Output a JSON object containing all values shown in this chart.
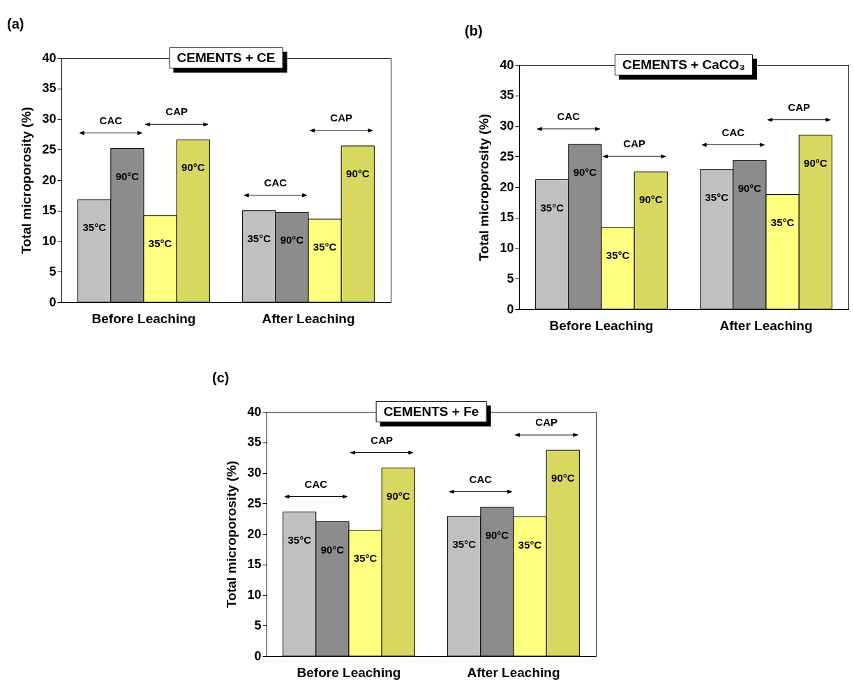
{
  "chart_data": [
    {
      "type": "bar",
      "title": "CEMENTS + CE",
      "ylabel": "Total microporosity (%)",
      "categories": [
        "Before Leaching",
        "After Leaching"
      ],
      "series": [
        {
          "name": "35°C",
          "color": "#c0c0c0",
          "values": [
            16.8,
            15.0
          ]
        },
        {
          "name": "90°C",
          "color": "#8c8c8c",
          "values": [
            25.2,
            14.7
          ]
        },
        {
          "name": "35°C",
          "color": "#ffff80",
          "values": [
            14.2,
            13.6
          ]
        },
        {
          "name": "90°C",
          "color": "#d8d860",
          "values": [
            26.6,
            25.6
          ]
        }
      ],
      "ylim": [
        0,
        40
      ],
      "yticks": [
        0,
        5,
        10,
        15,
        20,
        25,
        30,
        35,
        40
      ],
      "annotations": [
        "(a)",
        "CAC",
        "CAP",
        "CAC",
        "CAP"
      ]
    },
    {
      "type": "bar",
      "title": "CEMENTS + CaCO₃",
      "ylabel": "Total microporosity (%)",
      "categories": [
        "Before Leaching",
        "After Leaching"
      ],
      "series": [
        {
          "name": "35°C",
          "color": "#c0c0c0",
          "values": [
            21.2,
            22.9
          ]
        },
        {
          "name": "90°C",
          "color": "#8c8c8c",
          "values": [
            27.0,
            24.4
          ]
        },
        {
          "name": "35°C",
          "color": "#ffff80",
          "values": [
            13.4,
            18.8
          ]
        },
        {
          "name": "90°C",
          "color": "#d8d860",
          "values": [
            22.5,
            28.5
          ]
        }
      ],
      "ylim": [
        0,
        40
      ],
      "yticks": [
        0,
        5,
        10,
        15,
        20,
        25,
        30,
        35,
        40
      ],
      "annotations": [
        "(b)",
        "CAC",
        "CAP",
        "CAC",
        "CAP"
      ]
    },
    {
      "type": "bar",
      "title": "CEMENTS + Fe",
      "ylabel": "Total microporosity (%)",
      "categories": [
        "Before Leaching",
        "After Leaching"
      ],
      "series": [
        {
          "name": "35°C",
          "color": "#c0c0c0",
          "values": [
            23.6,
            22.9
          ]
        },
        {
          "name": "90°C",
          "color": "#8c8c8c",
          "values": [
            22.0,
            24.4
          ]
        },
        {
          "name": "35°C",
          "color": "#ffff80",
          "values": [
            20.6,
            22.8
          ]
        },
        {
          "name": "90°C",
          "color": "#d8d860",
          "values": [
            30.8,
            33.7
          ]
        }
      ],
      "ylim": [
        0,
        40
      ],
      "yticks": [
        0,
        5,
        10,
        15,
        20,
        25,
        30,
        35,
        40
      ],
      "annotations": [
        "(c)",
        "CAC",
        "CAP",
        "CAC",
        "CAP"
      ]
    }
  ]
}
